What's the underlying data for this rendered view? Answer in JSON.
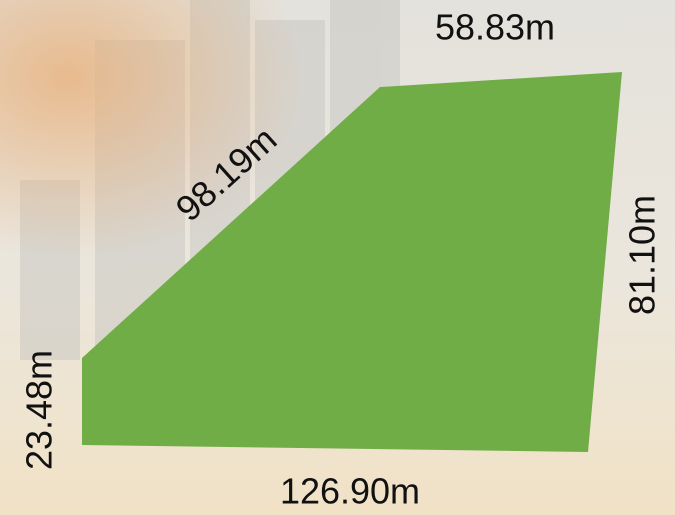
{
  "sides": [
    {
      "label": "58.83m"
    },
    {
      "label": "98.19m"
    },
    {
      "label": "81.10m"
    },
    {
      "label": "23.48m"
    },
    {
      "label": "126.90m"
    }
  ]
}
